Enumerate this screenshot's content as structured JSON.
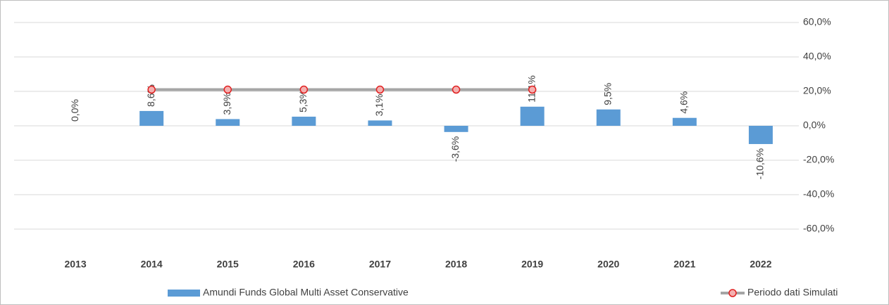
{
  "chart_data": {
    "type": "bar",
    "categories": [
      "2013",
      "2014",
      "2015",
      "2016",
      "2017",
      "2018",
      "2019",
      "2020",
      "2021",
      "2022"
    ],
    "series": [
      {
        "name": "Amundi Funds Global Multi Asset Conservative",
        "type": "bar",
        "color": "#5b9bd5",
        "values": [
          0.0,
          8.6,
          3.9,
          5.3,
          3.1,
          -3.6,
          11.1,
          9.5,
          4.6,
          -10.6
        ],
        "value_labels": [
          "0,0%",
          "8,6%",
          "3,9%",
          "5,3%",
          "3,1%",
          "-3,6%",
          "11,1%",
          "9,5%",
          "4,6%",
          "-10,6%"
        ]
      },
      {
        "name": "Periodo dati Simulati",
        "type": "line",
        "color": "#a5a5a5",
        "marker_color": "#e02020",
        "values": [
          null,
          21,
          21,
          21,
          21,
          21,
          21,
          null,
          null,
          null
        ]
      }
    ],
    "ylim": [
      -60,
      60
    ],
    "yticks": [
      {
        "value": -60,
        "label": "-60,0%"
      },
      {
        "value": -40,
        "label": "-40,0%"
      },
      {
        "value": -20,
        "label": "-20,0%"
      },
      {
        "value": 0,
        "label": "0,0%"
      },
      {
        "value": 20,
        "label": "20,0%"
      },
      {
        "value": 40,
        "label": "40,0%"
      },
      {
        "value": 60,
        "label": "60,0%"
      }
    ],
    "grid": true,
    "legend": "bottom"
  }
}
